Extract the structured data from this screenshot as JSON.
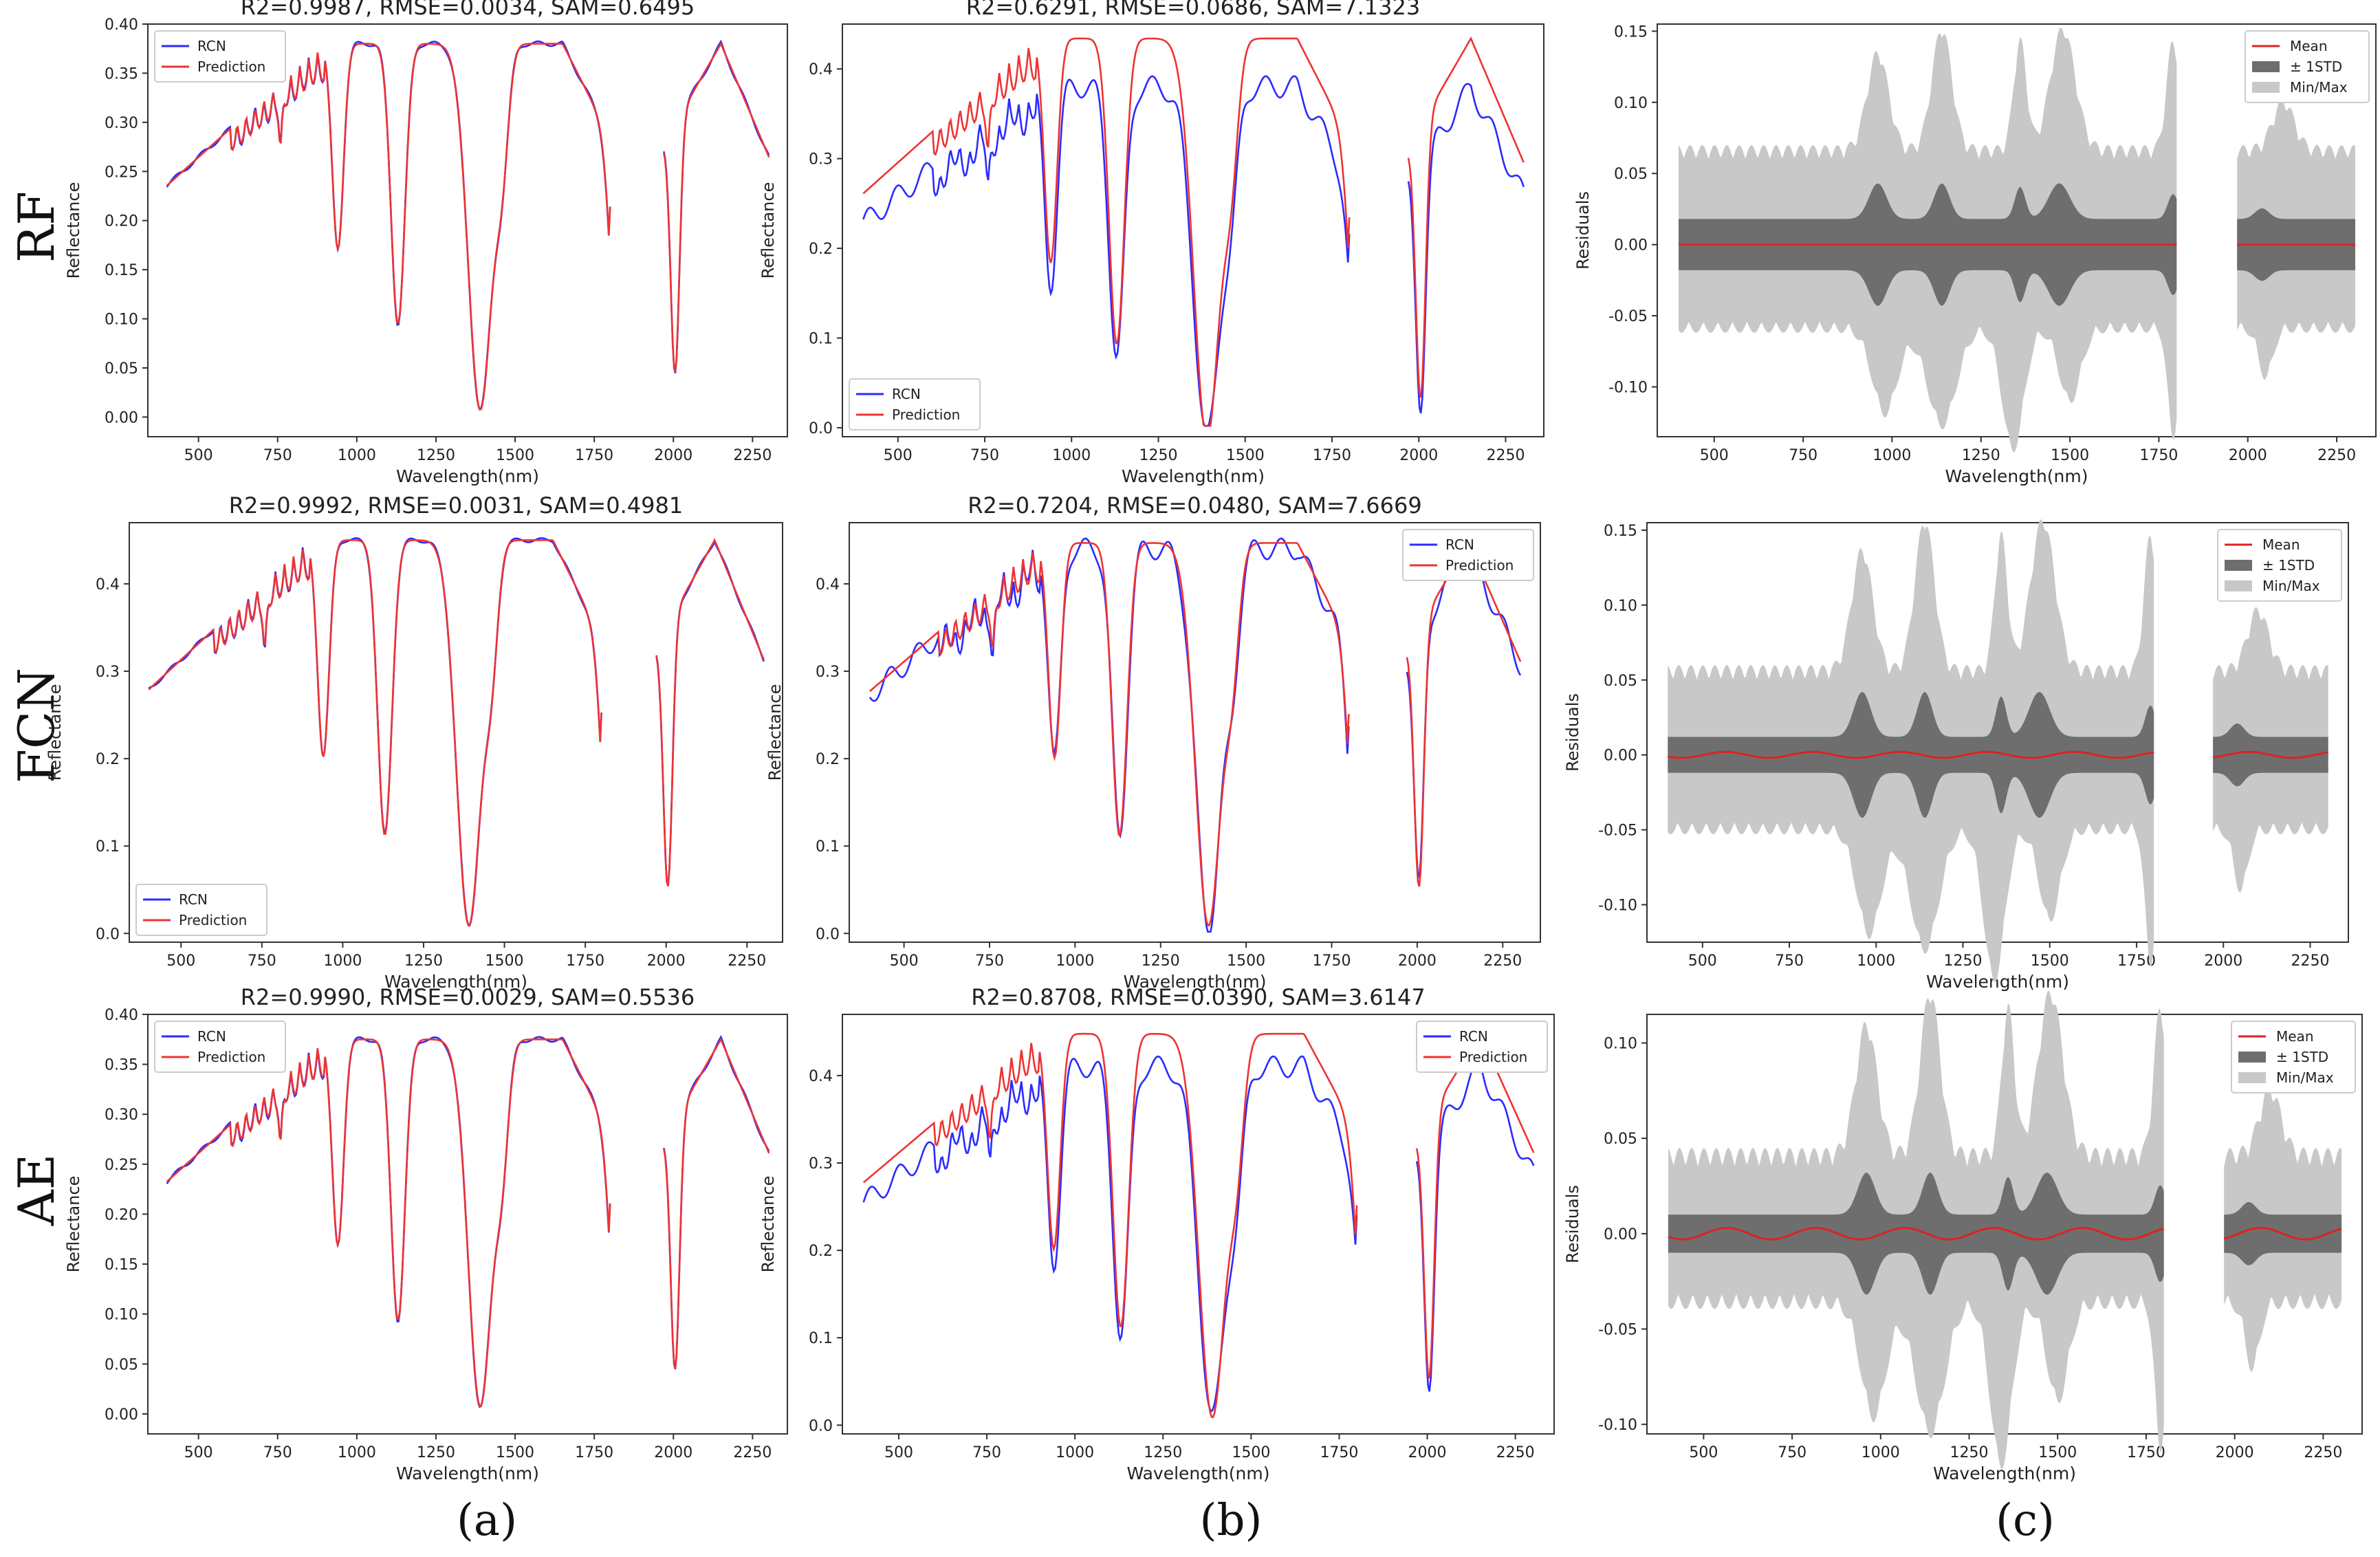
{
  "figure": {
    "row_labels": [
      "RF",
      "FCN",
      "AE"
    ],
    "column_labels": [
      "(a)",
      "(b)",
      "(c)"
    ],
    "colors": {
      "rcn": "#2b2bff",
      "prediction": "#ee3333",
      "mean": "#dd2222",
      "std_band": "#6e6e6e",
      "minmax_band": "#c8c8c8",
      "axis": "#333333"
    }
  },
  "chart_data": [
    {
      "type": "line",
      "id": "rf-a",
      "title": "R2=0.9987,  RMSE=0.0034,  SAM=0.6495",
      "xlabel": "Wavelength(nm)",
      "ylabel": "Reflectance",
      "xlim": [
        340,
        2360
      ],
      "ylim": [
        -0.02,
        0.4
      ],
      "xticks": [
        "500",
        "750",
        "1000",
        "1250",
        "1500",
        "1750",
        "2000",
        "2250"
      ],
      "yticks": [
        "0.00",
        "0.05",
        "0.10",
        "0.15",
        "0.20",
        "0.25",
        "0.30",
        "0.35",
        "0.40"
      ],
      "legend": [
        "RCN",
        "Prediction"
      ],
      "legend_loc": "upper-left",
      "profile": {
        "level": 0.38,
        "slope": 0.14,
        "offset": 0.0
      },
      "pred": {
        "scale": 1.0,
        "offset": 0.0
      }
    },
    {
      "type": "line",
      "id": "rf-b",
      "title": "R2=0.6291,  RMSE=0.0686,  SAM=7.1323",
      "xlabel": "Wavelength(nm)",
      "ylabel": "Reflectance",
      "xlim": [
        340,
        2360
      ],
      "ylim": [
        -0.01,
        0.45
      ],
      "xticks": [
        "500",
        "750",
        "1000",
        "1250",
        "1500",
        "1750",
        "2000",
        "2250"
      ],
      "yticks": [
        "0.0",
        "0.1",
        "0.2",
        "0.3",
        "0.4"
      ],
      "legend": [
        "RCN",
        "Prediction"
      ],
      "legend_loc": "lower-left",
      "profile": {
        "level": 0.4,
        "slope": 0.13,
        "offset": -0.02
      },
      "pred": {
        "scale": 1.05,
        "offset": 0.035
      }
    },
    {
      "type": "area",
      "id": "rf-c",
      "title": "",
      "xlabel": "Wavelength(nm)",
      "ylabel": "Residuals",
      "xlim": [
        340,
        2360
      ],
      "ylim": [
        -0.135,
        0.155
      ],
      "xticks": [
        "500",
        "750",
        "1000",
        "1250",
        "1500",
        "1750",
        "2000",
        "2250"
      ],
      "yticks": [
        "-0.10",
        "-0.05",
        "0.00",
        "0.05",
        "0.10",
        "0.15"
      ],
      "legend": [
        "Mean",
        "± 1STD",
        "Min/Max"
      ],
      "legend_loc": "upper-right",
      "band": {
        "std": 0.018,
        "std_peak": 0.025,
        "max": 0.06,
        "max_peak": 0.085,
        "mean_wave": 0.0
      }
    },
    {
      "type": "line",
      "id": "fcn-a",
      "title": "R2=0.9992,  RMSE=0.0031,  SAM=0.4981",
      "xlabel": "Wavelength(nm)",
      "ylabel": "Reflectance",
      "xlim": [
        340,
        2360
      ],
      "ylim": [
        -0.01,
        0.47
      ],
      "xticks": [
        "500",
        "750",
        "1000",
        "1250",
        "1500",
        "1750",
        "2000",
        "2250"
      ],
      "yticks": [
        "0.0",
        "0.1",
        "0.2",
        "0.3",
        "0.4"
      ],
      "legend": [
        "RCN",
        "Prediction"
      ],
      "legend_loc": "lower-left",
      "profile": {
        "level": 0.45,
        "slope": 0.17,
        "offset": 0.0
      },
      "pred": {
        "scale": 1.0,
        "offset": 0.0
      }
    },
    {
      "type": "line",
      "id": "fcn-b",
      "title": "R2=0.7204,  RMSE=0.0480,  SAM=7.6669",
      "xlabel": "Wavelength(nm)",
      "ylabel": "Reflectance",
      "xlim": [
        340,
        2360
      ],
      "ylim": [
        -0.01,
        0.47
      ],
      "xticks": [
        "500",
        "750",
        "1000",
        "1250",
        "1500",
        "1750",
        "2000",
        "2250"
      ],
      "yticks": [
        "0.0",
        "0.1",
        "0.2",
        "0.3",
        "0.4"
      ],
      "legend": [
        "RCN",
        "Prediction"
      ],
      "legend_loc": "upper-right",
      "profile": {
        "level": 0.44,
        "slope": 0.22,
        "offset": 0.0
      },
      "pred": {
        "scale": 0.97,
        "offset": 0.02
      }
    },
    {
      "type": "area",
      "id": "fcn-c",
      "title": "",
      "xlabel": "Wavelength(nm)",
      "ylabel": "Residuals",
      "xlim": [
        340,
        2360
      ],
      "ylim": [
        -0.125,
        0.155
      ],
      "xticks": [
        "500",
        "750",
        "1000",
        "1250",
        "1500",
        "1750",
        "2000",
        "2250"
      ],
      "yticks": [
        "-0.10",
        "-0.05",
        "0.00",
        "0.05",
        "0.10",
        "0.15"
      ],
      "legend": [
        "Mean",
        "± 1STD",
        "Min/Max"
      ],
      "legend_loc": "upper-right",
      "band": {
        "std": 0.012,
        "std_peak": 0.03,
        "max": 0.05,
        "max_peak": 0.1,
        "mean_wave": 0.002
      }
    },
    {
      "type": "line",
      "id": "ae-a",
      "title": "R2=0.9990,  RMSE=0.0029,  SAM=0.5536",
      "xlabel": "Wavelength(nm)",
      "ylabel": "Reflectance",
      "xlim": [
        340,
        2360
      ],
      "ylim": [
        -0.02,
        0.4
      ],
      "xticks": [
        "500",
        "750",
        "1000",
        "1250",
        "1500",
        "1750",
        "2000",
        "2250"
      ],
      "yticks": [
        "0.00",
        "0.05",
        "0.10",
        "0.15",
        "0.20",
        "0.25",
        "0.30",
        "0.35",
        "0.40"
      ],
      "legend": [
        "RCN",
        "Prediction"
      ],
      "legend_loc": "upper-left",
      "profile": {
        "level": 0.375,
        "slope": 0.15,
        "offset": 0.0
      },
      "pred": {
        "scale": 1.0,
        "offset": 0.0
      }
    },
    {
      "type": "line",
      "id": "ae-b",
      "title": "R2=0.8708,  RMSE=0.0390,  SAM=3.6147",
      "xlabel": "Wavelength(nm)",
      "ylabel": "Reflectance",
      "xlim": [
        340,
        2360
      ],
      "ylim": [
        -0.01,
        0.47
      ],
      "xticks": [
        "500",
        "750",
        "1000",
        "1250",
        "1500",
        "1750",
        "2000",
        "2250"
      ],
      "yticks": [
        "0.0",
        "0.1",
        "0.2",
        "0.3",
        "0.4"
      ],
      "legend": [
        "RCN",
        "Prediction"
      ],
      "legend_loc": "upper-right",
      "profile": {
        "level": 0.41,
        "slope": 0.08,
        "offset": 0.0
      },
      "pred": {
        "scale": 1.08,
        "offset": 0.005
      }
    },
    {
      "type": "area",
      "id": "ae-c",
      "title": "",
      "xlabel": "Wavelength(nm)",
      "ylabel": "Residuals",
      "xlim": [
        340,
        2360
      ],
      "ylim": [
        -0.105,
        0.115
      ],
      "xticks": [
        "500",
        "750",
        "1000",
        "1250",
        "1500",
        "1750",
        "2000",
        "2250"
      ],
      "yticks": [
        "-0.10",
        "-0.05",
        "0.00",
        "0.05",
        "0.10"
      ],
      "legend": [
        "Mean",
        "± 1STD",
        "Min/Max"
      ],
      "legend_loc": "upper-right",
      "band": {
        "std": 0.01,
        "std_peak": 0.022,
        "max": 0.035,
        "max_peak": 0.085,
        "mean_wave": 0.003
      }
    }
  ]
}
